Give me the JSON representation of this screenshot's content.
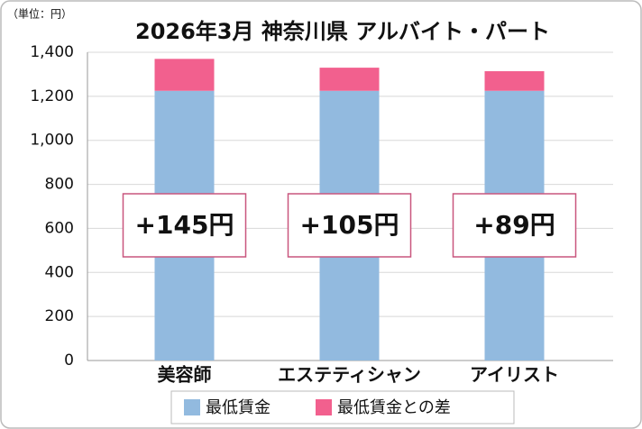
{
  "chart_data": {
    "type": "bar",
    "stacked": true,
    "title": "2026年3月 神奈川県 アルバイト・パート",
    "unit_label": "（単位：円）",
    "categories": [
      "美容師",
      "エステティシャン",
      "アイリスト"
    ],
    "series": [
      {
        "name": "最低賃金",
        "color": "#92badf",
        "values": [
          1225,
          1225,
          1225
        ]
      },
      {
        "name": "最低賃金との差",
        "color": "#f2608e",
        "values": [
          145,
          105,
          89
        ],
        "value_labels": [
          "+145円",
          "+105円",
          "+89円"
        ]
      }
    ],
    "ylim": [
      0,
      1400
    ],
    "yticks": [
      0,
      200,
      400,
      600,
      800,
      {
        "value": 1000,
        "label": "1,000"
      },
      {
        "value": 1200,
        "label": "1,200"
      },
      {
        "value": 1400,
        "label": "1,400"
      }
    ],
    "grid": true
  }
}
